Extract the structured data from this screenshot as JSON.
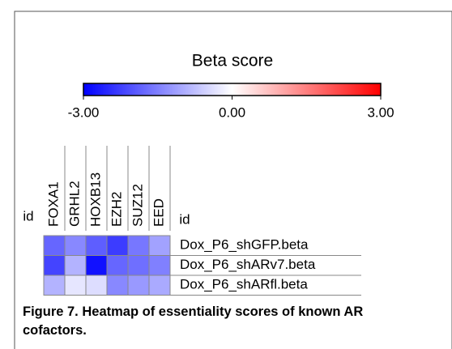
{
  "chart_data": {
    "type": "heatmap",
    "title": "Beta score",
    "colorbar": {
      "colors": [
        "#0000ff",
        "#ffffff",
        "#ff0000"
      ],
      "clim": [
        -3,
        3
      ],
      "ticks": [
        {
          "value": -3,
          "label": "-3.00"
        },
        {
          "value": 0,
          "label": "0.00"
        },
        {
          "value": 3,
          "label": "3.00"
        }
      ]
    },
    "row_id_label": "id",
    "col_id_label": "id",
    "columns": [
      "FOXA1",
      "GRHL2",
      "HOXB13",
      "EZH2",
      "SUZ12",
      "EED"
    ],
    "rows": [
      "Dox_P6_shGFP.beta",
      "Dox_P6_shARv7.beta",
      "Dox_P6_shARfl.beta"
    ],
    "values": [
      [
        -1.8,
        -1.4,
        -1.9,
        -2.3,
        -1.6,
        -1.1
      ],
      [
        -2.2,
        -0.9,
        -2.8,
        -1.8,
        -1.7,
        -1.5
      ],
      [
        -0.9,
        -0.3,
        -0.4,
        -1.4,
        -1.2,
        -1.0
      ]
    ],
    "caption": "Figure 7. Heatmap of essentiality scores of known AR cofactors."
  }
}
